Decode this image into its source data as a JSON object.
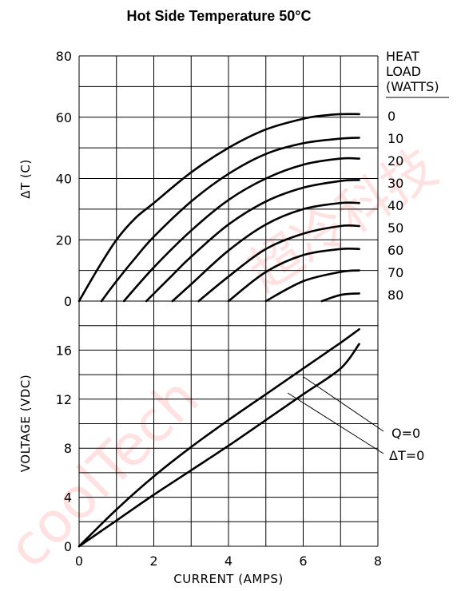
{
  "title": "Hot Side Temperature 50°C",
  "watermarks": {
    "cn": "超冷科技",
    "en": "coolTech"
  },
  "chart_data": [
    {
      "type": "line",
      "title": "",
      "xlabel": "",
      "ylabel": "ΔT (C)",
      "xlim": [
        0,
        8
      ],
      "ylim": [
        0,
        80
      ],
      "x_ticks": [
        "0",
        "2",
        "4",
        "6",
        "8"
      ],
      "y_ticks": [
        "0",
        "20",
        "40",
        "60",
        "80"
      ],
      "grid": true,
      "legend_title": [
        "HEAT",
        "LOAD",
        "(WATTS)"
      ],
      "series": [
        {
          "name": "0",
          "x": [
            0,
            0.5,
            1.0,
            1.5,
            2.0,
            3.0,
            4.0,
            5.0,
            6.0,
            6.5,
            7.0,
            7.5
          ],
          "y": [
            0,
            10.5,
            20,
            27,
            32,
            42,
            50,
            56,
            59.5,
            60.5,
            61,
            61
          ]
        },
        {
          "name": "10",
          "x": [
            0.6,
            1.0,
            1.5,
            2.0,
            3.0,
            4.0,
            5.0,
            6.0,
            7.0,
            7.5
          ],
          "y": [
            0,
            6.5,
            14,
            21,
            32.5,
            41.5,
            48,
            51.5,
            53,
            53.3
          ]
        },
        {
          "name": "20",
          "x": [
            1.2,
            2.0,
            3.0,
            4.0,
            5.0,
            6.0,
            7.0,
            7.5
          ],
          "y": [
            0,
            11,
            23,
            33,
            40,
            44.5,
            46.5,
            46.5
          ]
        },
        {
          "name": "30",
          "x": [
            1.8,
            2.5,
            3.0,
            4.0,
            5.0,
            6.0,
            7.0,
            7.5
          ],
          "y": [
            0,
            8.5,
            14.5,
            25,
            32.5,
            37,
            39.2,
            39.5
          ]
        },
        {
          "name": "40",
          "x": [
            2.5,
            3.0,
            4.0,
            5.0,
            6.0,
            7.0,
            7.5
          ],
          "y": [
            0,
            5.5,
            16.5,
            25,
            30,
            32,
            32
          ]
        },
        {
          "name": "50",
          "x": [
            3.2,
            4.0,
            5.0,
            6.0,
            7.0,
            7.5
          ],
          "y": [
            0,
            8,
            17,
            22,
            24.5,
            24.5
          ]
        },
        {
          "name": "60",
          "x": [
            4.0,
            5.0,
            6.0,
            7.0,
            7.5
          ],
          "y": [
            0,
            9.5,
            15,
            17,
            17
          ]
        },
        {
          "name": "70",
          "x": [
            5.0,
            6.0,
            7.0,
            7.5
          ],
          "y": [
            0,
            6.5,
            9.5,
            10
          ]
        },
        {
          "name": "80",
          "x": [
            6.5,
            7.0,
            7.5
          ],
          "y": [
            0,
            2,
            2.5
          ]
        }
      ]
    },
    {
      "type": "line",
      "title": "",
      "xlabel": "CURRENT (AMPS)",
      "ylabel": "VOLTAGE (VDC)",
      "xlim": [
        0,
        8
      ],
      "ylim": [
        0,
        20
      ],
      "x_ticks": [
        "0",
        "2",
        "4",
        "6",
        "8"
      ],
      "y_ticks": [
        "0",
        "4",
        "8",
        "12",
        "16"
      ],
      "grid": true,
      "series": [
        {
          "name": "Q=0",
          "x": [
            0,
            1,
            2,
            3,
            4,
            5,
            6,
            7,
            7.5
          ],
          "y": [
            0,
            3,
            5.7,
            8.1,
            10.3,
            12.4,
            14.5,
            16.6,
            17.7
          ]
        },
        {
          "name": "ΔT=0",
          "x": [
            0,
            1,
            2,
            3,
            4,
            5,
            6,
            7,
            7.5
          ],
          "y": [
            0,
            2.1,
            4.2,
            6.2,
            8.2,
            10.3,
            12.4,
            14.5,
            16.5
          ]
        }
      ]
    }
  ]
}
